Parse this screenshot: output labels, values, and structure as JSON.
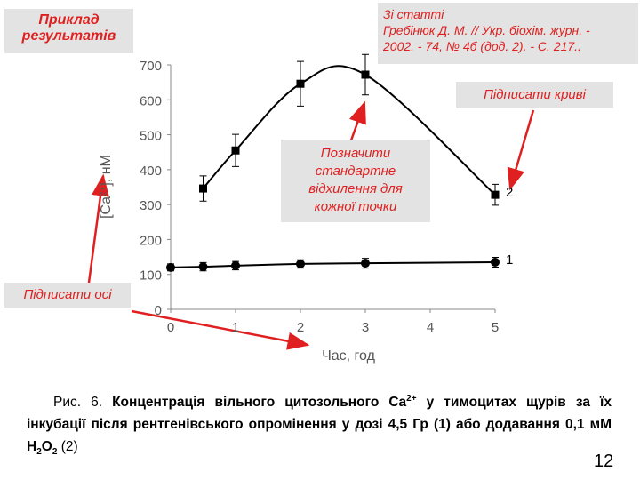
{
  "chart_data": {
    "type": "line",
    "ylabel": [
      "[Ca",
      "2+",
      "], нМ"
    ],
    "xlabel": "Час, год",
    "xlim": [
      0,
      5
    ],
    "xticks": [
      0,
      1,
      2,
      3,
      4,
      5
    ],
    "ylim": [
      0,
      700
    ],
    "yticks": [
      0,
      100,
      200,
      300,
      400,
      500,
      600,
      700
    ],
    "color": "#000000",
    "series": [
      {
        "name": "1",
        "marker": "circle",
        "x": [
          0,
          0.5,
          1,
          2,
          3,
          5
        ],
        "values": [
          120,
          122,
          125,
          130,
          132,
          135
        ],
        "errors": [
          10,
          12,
          12,
          12,
          14,
          14
        ]
      },
      {
        "name": "2",
        "marker": "square",
        "x": [
          0.5,
          1,
          2,
          3,
          5
        ],
        "values": [
          346,
          455,
          646,
          672,
          328
        ],
        "errors": [
          36,
          46,
          64,
          58,
          30
        ]
      }
    ]
  },
  "annotations": {
    "example": [
      "Приклад",
      "результатів"
    ],
    "source": [
      "Зі статті",
      "Гребінюк Д. М. // Укр. біохім. журн. -",
      "2002. - 74, № 4б (дод. 2). - С. 217.."
    ],
    "label_curves": [
      "Підписати криві"
    ],
    "std_dev": [
      "Позначити",
      "стандартне",
      "відхилення для",
      "кожної точки"
    ],
    "label_axes": [
      "Підписати осі"
    ]
  },
  "caption": [
    "Рис. 6. ",
    "Концентрація вільного цитозольного Ca",
    "2+",
    " у тимоцитах щурів за їх інкубації після рентгенівського опромінення у дозі 4,5 Гр (1) або додавання 0,1 мМ H",
    "2",
    "O",
    "2",
    " (2)"
  ],
  "page_number": "12"
}
